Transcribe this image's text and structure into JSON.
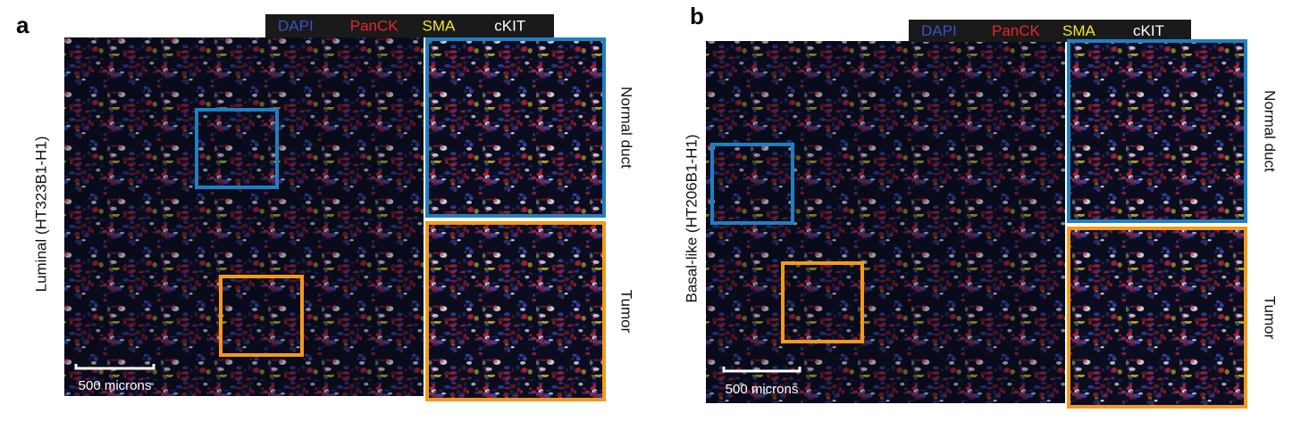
{
  "panels": [
    {
      "label": "a",
      "legend": [
        {
          "name": "DAPI",
          "color": "#3b4fc7"
        },
        {
          "name": "PanCK",
          "color": "#e8262b"
        },
        {
          "name": "SMA",
          "color": "#f1e52c"
        },
        {
          "name": "cKIT",
          "color": "#ffffff"
        }
      ],
      "sample": "Luminal (HT323B1-H1)",
      "insets": [
        {
          "label": "Normal duct",
          "color": "#1f7fc4"
        },
        {
          "label": "Tumor",
          "color": "#f39a1e"
        }
      ],
      "scale_bar": "500 microns"
    },
    {
      "label": "b",
      "legend": [
        {
          "name": "DAPI",
          "color": "#3b4fc7"
        },
        {
          "name": "PanCK",
          "color": "#e8262b"
        },
        {
          "name": "SMA",
          "color": "#f1e52c"
        },
        {
          "name": "cKIT",
          "color": "#ffffff"
        }
      ],
      "sample": "Basal-like (HT206B1-H1)",
      "insets": [
        {
          "label": "Normal duct",
          "color": "#1f7fc4"
        },
        {
          "label": "Tumor",
          "color": "#f39a1e"
        }
      ],
      "scale_bar": "500 microns"
    }
  ]
}
